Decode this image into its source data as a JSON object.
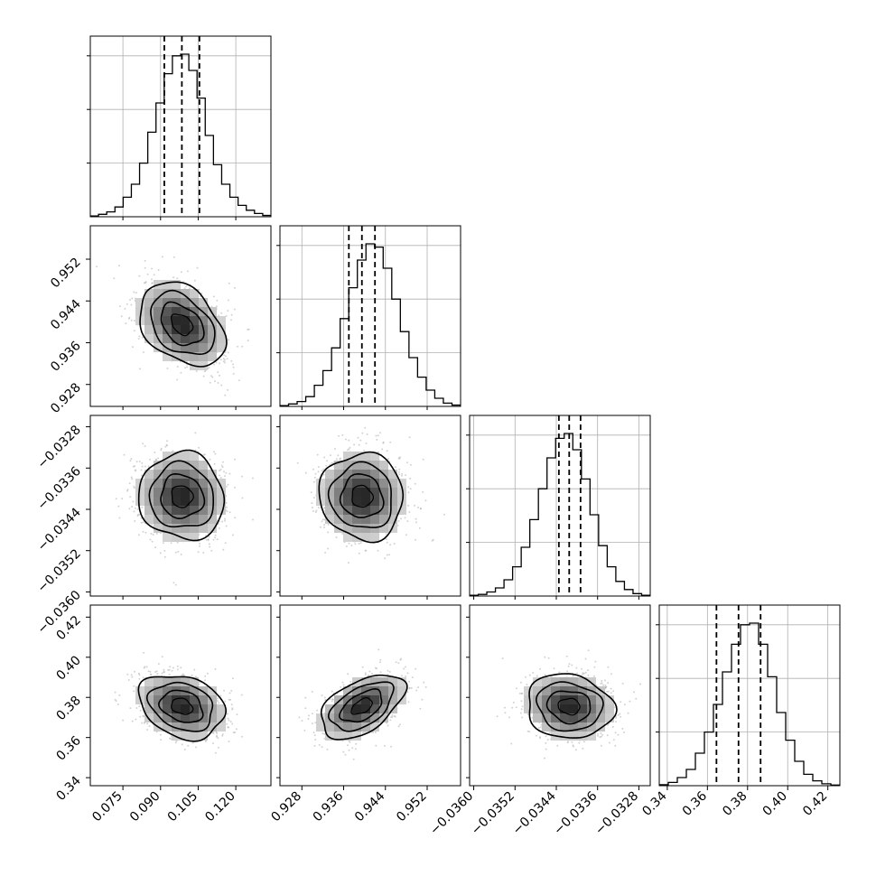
{
  "chart_data": {
    "type": "corner",
    "parameters": [
      {
        "range": [
          0.062,
          0.134
        ],
        "ticks": [
          0.075,
          0.09,
          0.105,
          0.12
        ],
        "tick_labels": [
          "0.075",
          "0.090",
          "0.105",
          "0.120"
        ],
        "median": 0.0985,
        "q16": 0.0915,
        "q84": 0.1055
      },
      {
        "range": [
          0.9238,
          0.9584
        ],
        "ticks": [
          0.928,
          0.936,
          0.944,
          0.952
        ],
        "tick_labels": [
          "0.928",
          "0.936",
          "0.944",
          "0.952"
        ],
        "median": 0.9395,
        "q16": 0.937,
        "q84": 0.942
      },
      {
        "range": [
          -0.03608,
          -0.03258
        ],
        "ticks": [
          -0.036,
          -0.0352,
          -0.0344,
          -0.0336,
          -0.0328
        ],
        "tick_labels": [
          "−0.0360",
          "−0.0352",
          "−0.0344",
          "−0.0336",
          "−0.0328"
        ],
        "median": -0.03415,
        "q16": -0.03435,
        "q84": -0.03393
      },
      {
        "range": [
          0.336,
          0.426
        ],
        "ticks": [
          0.34,
          0.36,
          0.38,
          0.4,
          0.42
        ],
        "tick_labels": [
          "0.34",
          "0.36",
          "0.38",
          "0.40",
          "0.42"
        ],
        "median": 0.3755,
        "q16": 0.3645,
        "q84": 0.3865
      }
    ],
    "histograms": [
      [
        0.005,
        0.015,
        0.03,
        0.06,
        0.12,
        0.2,
        0.33,
        0.52,
        0.7,
        0.88,
        0.99,
        1.0,
        0.9,
        0.73,
        0.5,
        0.32,
        0.2,
        0.12,
        0.07,
        0.04,
        0.02,
        0.008
      ],
      [
        0.005,
        0.015,
        0.03,
        0.06,
        0.13,
        0.22,
        0.36,
        0.54,
        0.73,
        0.9,
        1.0,
        0.98,
        0.85,
        0.66,
        0.46,
        0.3,
        0.18,
        0.1,
        0.05,
        0.02,
        0.008
      ],
      [
        0.005,
        0.01,
        0.025,
        0.05,
        0.1,
        0.18,
        0.3,
        0.47,
        0.66,
        0.85,
        0.97,
        1.0,
        0.9,
        0.72,
        0.5,
        0.31,
        0.18,
        0.09,
        0.04,
        0.015,
        0.005
      ],
      [
        0.006,
        0.02,
        0.05,
        0.1,
        0.2,
        0.33,
        0.5,
        0.7,
        0.87,
        0.99,
        1.0,
        0.87,
        0.67,
        0.45,
        0.28,
        0.15,
        0.07,
        0.03,
        0.012,
        0.004
      ]
    ],
    "pairs": [
      {
        "x": 0,
        "y": 1,
        "cx": 0.0985,
        "cy": 0.9395,
        "sx": 0.0085,
        "sy": 0.004,
        "rho": -0.35
      },
      {
        "x": 0,
        "y": 2,
        "cx": 0.0985,
        "cy": -0.03415,
        "sx": 0.0085,
        "sy": 0.00042,
        "rho": -0.05
      },
      {
        "x": 1,
        "y": 2,
        "cx": 0.9395,
        "cy": -0.03415,
        "sx": 0.004,
        "sy": 0.00042,
        "rho": -0.05
      },
      {
        "x": 0,
        "y": 3,
        "cx": 0.0985,
        "cy": 0.3755,
        "sx": 0.0085,
        "sy": 0.008,
        "rho": -0.25
      },
      {
        "x": 1,
        "y": 3,
        "cx": 0.9395,
        "cy": 0.3755,
        "sx": 0.004,
        "sy": 0.008,
        "rho": 0.5
      },
      {
        "x": 2,
        "y": 3,
        "cx": -0.03415,
        "cy": 0.3755,
        "sx": 0.00042,
        "sy": 0.008,
        "rho": -0.1
      }
    ],
    "contour_levels": [
      0.5,
      1.0,
      1.5,
      2.0
    ],
    "grid": true,
    "quantile_lines": "dashed"
  },
  "colors": {
    "line": "#000000",
    "grid": "#b0b0b0",
    "scatter": "#9e9e9e",
    "density_low": "#ececec",
    "density_high": "#202020"
  }
}
